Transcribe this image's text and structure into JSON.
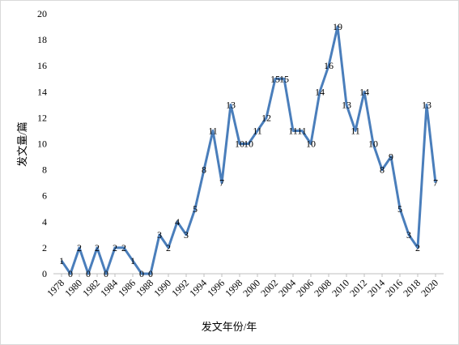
{
  "chart_data": {
    "type": "line",
    "x": [
      1978,
      1979,
      1980,
      1981,
      1982,
      1983,
      1984,
      1985,
      1986,
      1987,
      1988,
      1989,
      1990,
      1991,
      1992,
      1993,
      1994,
      1995,
      1996,
      1997,
      1998,
      1999,
      2000,
      2001,
      2002,
      2003,
      2004,
      2005,
      2006,
      2007,
      2008,
      2009,
      2010,
      2011,
      2012,
      2013,
      2014,
      2015,
      2016,
      2017,
      2018,
      2019,
      2020
    ],
    "values": [
      1,
      0,
      2,
      0,
      2,
      0,
      2,
      2,
      1,
      0,
      0,
      3,
      2,
      4,
      3,
      5,
      8,
      11,
      7,
      13,
      10,
      10,
      11,
      12,
      15,
      15,
      11,
      11,
      10,
      14,
      16,
      19,
      13,
      11,
      14,
      10,
      8,
      9,
      5,
      3,
      2,
      13,
      7
    ],
    "color": "#4a7ebb",
    "xlabel": "发文年份/年",
    "ylabel": "发文量/篇",
    "xlim": [
      1978,
      2020
    ],
    "xticks": [
      1978,
      1980,
      1982,
      1984,
      1986,
      1988,
      1990,
      1992,
      1994,
      1996,
      1998,
      2000,
      2002,
      2004,
      2006,
      2008,
      2010,
      2012,
      2014,
      2016,
      2018,
      2020
    ],
    "ylim": [
      0,
      20
    ],
    "yticks": [
      0,
      2,
      4,
      6,
      8,
      10,
      12,
      14,
      16,
      18,
      20
    ],
    "grid": false
  }
}
